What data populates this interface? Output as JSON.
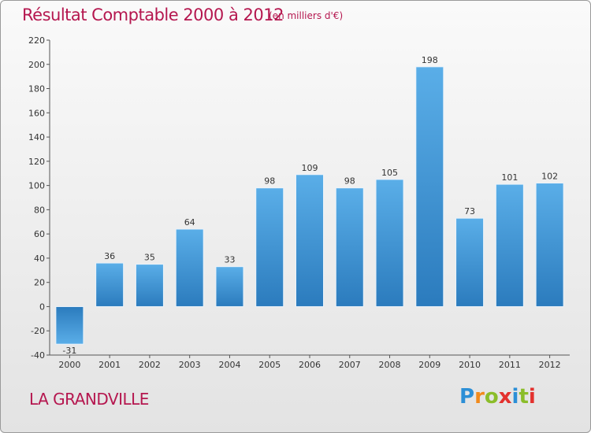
{
  "header": {
    "title": "Résultat Comptable 2000 à 2012",
    "subtitle": "(en milliers d'€)"
  },
  "footer": {
    "commune": "LA GRANDVILLE",
    "logo_letters": [
      "P",
      "r",
      "o",
      "x",
      "i",
      "t",
      "i"
    ],
    "logo_colors": [
      "#2c8fd6",
      "#f18a1c",
      "#8bbd2a",
      "#e3312e",
      "#2c8fd6",
      "#8bbd2a",
      "#e3312e"
    ]
  },
  "chart_data": {
    "type": "bar",
    "title": "Résultat Comptable 2000 à 2012",
    "subtitle": "(en milliers d'€)",
    "xlabel": "",
    "ylabel": "",
    "categories": [
      "2000",
      "2001",
      "2002",
      "2003",
      "2004",
      "2005",
      "2006",
      "2007",
      "2008",
      "2009",
      "2010",
      "2011",
      "2012"
    ],
    "values": [
      -31,
      36,
      35,
      64,
      33,
      98,
      109,
      98,
      105,
      198,
      73,
      101,
      102
    ],
    "data_labels": [
      "-31",
      "36",
      "35",
      "64",
      "33",
      "98",
      "109",
      "98",
      "105",
      "198",
      "73",
      "101",
      "102"
    ],
    "ylim": [
      -40,
      220
    ],
    "yticks": [
      -40,
      -20,
      0,
      20,
      40,
      60,
      80,
      100,
      120,
      140,
      160,
      180,
      200,
      220
    ],
    "ytick_labels": [
      "-40",
      "-20",
      "0",
      "20",
      "40",
      "60",
      "80",
      "100",
      "120",
      "140",
      "160",
      "180",
      "200",
      "220"
    ],
    "grid": false,
    "bar_color": "#3a95d8"
  }
}
